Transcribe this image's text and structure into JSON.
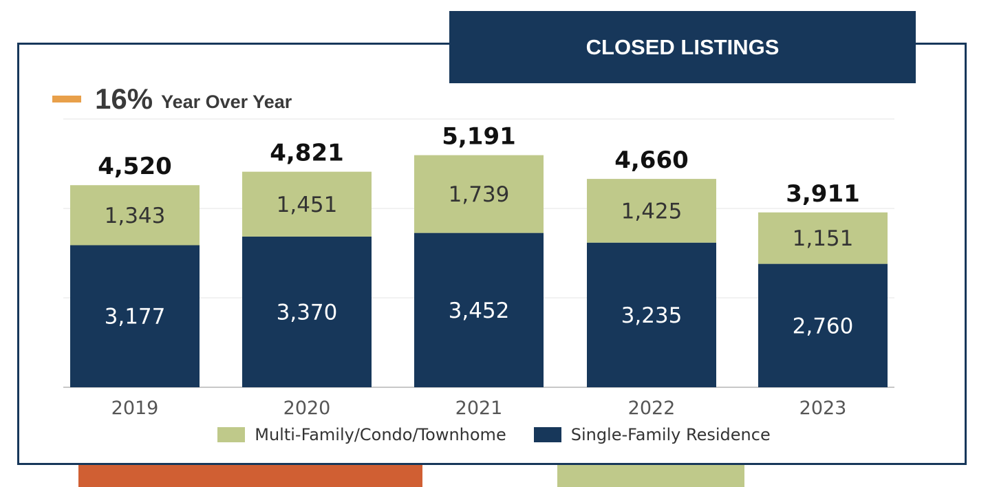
{
  "title": "CLOSED LISTINGS",
  "yoy": {
    "value": "16%",
    "label": "Year Over Year",
    "color": "#e8a04a"
  },
  "colors": {
    "navy": "#17375a",
    "green": "#bfc98a",
    "orange": "#d05f33",
    "grid": "#e6e6e6",
    "axis": "#c8c8c8"
  },
  "chart_data": {
    "type": "bar",
    "stacked": true,
    "categories": [
      "2019",
      "2020",
      "2021",
      "2022",
      "2023"
    ],
    "series": [
      {
        "name": "Single-Family Residence",
        "values": [
          3177,
          3370,
          3452,
          3235,
          2760
        ],
        "color": "#17375a",
        "labels": [
          "3,177",
          "3,370",
          "3,452",
          "3,235",
          "2,760"
        ]
      },
      {
        "name": "Multi-Family/Condo/Townhome",
        "values": [
          1343,
          1451,
          1739,
          1425,
          1151
        ],
        "color": "#bfc98a",
        "labels": [
          "1,343",
          "1,451",
          "1,739",
          "1,425",
          "1,151"
        ]
      }
    ],
    "totals": [
      4520,
      4821,
      5191,
      4660,
      3911
    ],
    "total_labels": [
      "4,520",
      "4,821",
      "5,191",
      "4,660",
      "3,911"
    ],
    "ylim": [
      0,
      6000
    ],
    "grid": true,
    "legend": [
      {
        "name": "Multi-Family/Condo/Townhome",
        "color": "#bfc98a"
      },
      {
        "name": "Single-Family Residence",
        "color": "#17375a"
      }
    ],
    "legend_position": "bottom"
  }
}
